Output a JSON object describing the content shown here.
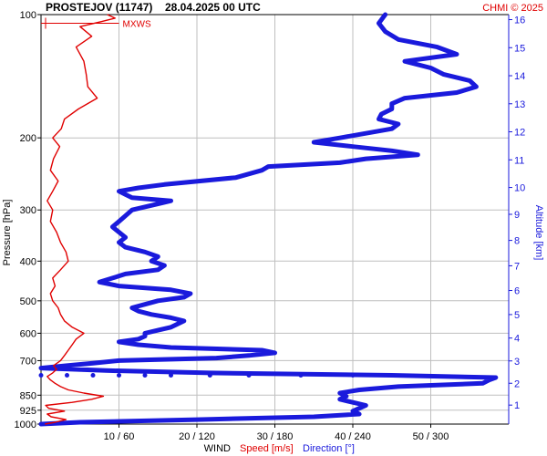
{
  "chart_data": {
    "type": "line",
    "title": "PROSTEJOV (11747)",
    "datetime": "28.04.2025 00 UTC",
    "credit": "CHMI © 2025",
    "ylabel": "Pressure [hPa]",
    "ylabel_right": "Altitude [km]",
    "y_scale": "log",
    "y_reversed": true,
    "ylim": [
      1000,
      100
    ],
    "y_ticks": [
      100,
      200,
      300,
      400,
      500,
      600,
      700,
      850,
      925,
      1000
    ],
    "alt_ticks": [
      1,
      2,
      3,
      4,
      5,
      6,
      7,
      8,
      9,
      10,
      11,
      12,
      13,
      14,
      15,
      16
    ],
    "x_ticks": [
      "10 / 60",
      "20 / 120",
      "30 / 180",
      "40 / 240",
      "50 / 300"
    ],
    "x_tick_values_speed": [
      10,
      20,
      30,
      40,
      50
    ],
    "xlim_speed": [
      0,
      60
    ],
    "xlim_direction": [
      0,
      360
    ],
    "x_label_parts": {
      "wind": "WIND",
      "speed": "Speed [m/s]",
      "direction": "Direction [°]"
    },
    "annotation": "MXWS",
    "mxws_pressure": 105,
    "mxws_speed": 10,
    "colors": {
      "speed": "#e00000",
      "direction": "#1a1adc",
      "grid": "#bfbfbf",
      "axis": "#000000"
    },
    "series": [
      {
        "name": "Speed [m/s]",
        "unit": "m/s",
        "y_pressure": [
          1000,
          990,
          975,
          960,
          945,
          930,
          915,
          900,
          885,
          870,
          855,
          840,
          825,
          810,
          795,
          780,
          765,
          750,
          735,
          720,
          700,
          680,
          660,
          640,
          620,
          600,
          580,
          560,
          540,
          520,
          500,
          480,
          460,
          440,
          420,
          400,
          380,
          360,
          340,
          320,
          300,
          285,
          270,
          255,
          240,
          225,
          210,
          200,
          190,
          180,
          170,
          160,
          150,
          140,
          130,
          120,
          113,
          107,
          104,
          102,
          100
        ],
        "x": [
          0.5,
          1.8,
          3.2,
          1.3,
          0.8,
          3.0,
          1.0,
          0.6,
          4.0,
          6.5,
          8.0,
          5.5,
          3.5,
          2.5,
          1.8,
          1.2,
          0.8,
          1.5,
          2.0,
          1.6,
          2.5,
          3.0,
          3.5,
          4.0,
          4.5,
          5.5,
          4.0,
          3.0,
          2.5,
          2.2,
          1.5,
          1.2,
          1.8,
          1.5,
          2.5,
          3.5,
          3.2,
          2.5,
          2.0,
          1.2,
          1.5,
          0.8,
          1.5,
          2.2,
          1.2,
          1.6,
          2.4,
          1.5,
          2.6,
          3.0,
          4.8,
          7.2,
          6.0,
          5.8,
          5.5,
          4.5,
          6.5,
          5.0,
          7.8,
          9.5,
          8.5
        ]
      },
      {
        "name": "Direction [°]",
        "unit": "°",
        "y_pressure": [
          1000,
          990,
          975,
          960,
          945,
          930,
          915,
          900,
          885,
          870,
          855,
          840,
          825,
          810,
          795,
          780,
          770,
          760,
          750,
          740,
          730,
          720,
          710,
          700,
          690,
          680,
          670,
          660,
          650,
          640,
          630,
          620,
          610,
          600,
          590,
          580,
          570,
          560,
          550,
          540,
          530,
          520,
          510,
          500,
          490,
          480,
          470,
          460,
          450,
          440,
          430,
          420,
          410,
          400,
          390,
          380,
          370,
          360,
          350,
          340,
          330,
          320,
          310,
          300,
          290,
          285,
          280,
          275,
          270,
          265,
          260,
          250,
          240,
          235,
          230,
          225,
          220,
          215,
          210,
          205,
          200,
          195,
          190,
          185,
          180,
          175,
          170,
          165,
          160,
          155,
          150,
          145,
          140,
          135,
          130,
          125,
          120,
          115,
          110,
          105,
          100
        ],
        "x": [
          0,
          30,
          120,
          210,
          245,
          240,
          245,
          250,
          240,
          230,
          235,
          230,
          245,
          275,
          340,
          345,
          350,
          270,
          130,
          50,
          0,
          20,
          40,
          60,
          135,
          160,
          180,
          170,
          100,
          75,
          60,
          75,
          80,
          80,
          90,
          100,
          105,
          110,
          100,
          85,
          75,
          70,
          80,
          90,
          110,
          115,
          100,
          60,
          45,
          55,
          65,
          90,
          95,
          85,
          90,
          80,
          65,
          60,
          65,
          60,
          55,
          60,
          65,
          70,
          90,
          100,
          70,
          65,
          60,
          75,
          95,
          150,
          170,
          175,
          230,
          250,
          290,
          270,
          240,
          210,
          230,
          250,
          270,
          275,
          260,
          262,
          270,
          270,
          280,
          320,
          335,
          330,
          310,
          300,
          280,
          320,
          305,
          275,
          265,
          260,
          265
        ]
      }
    ],
    "direction_markers": {
      "y_pressure": 760,
      "x": [
        0,
        20,
        40,
        60,
        80,
        100,
        130,
        160,
        200,
        240
      ]
    }
  }
}
